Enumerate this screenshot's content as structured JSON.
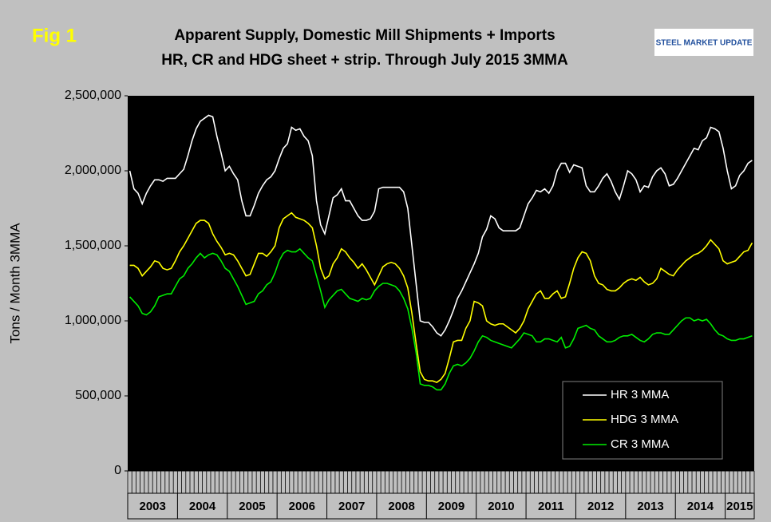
{
  "figure_label": "Fig 1",
  "logo": "STEEL MARKET UPDATE",
  "chart_data": {
    "type": "line",
    "title": "Apparent Supply, Domestic Mill Shipments + Imports",
    "subtitle": "HR, CR and HDG sheet + strip. Through July 2015 3MMA",
    "y_label": "Tons / Month 3MMA",
    "categories": [
      "2003",
      null,
      null,
      null,
      null,
      null,
      null,
      null,
      null,
      null,
      null,
      null,
      "2004",
      null,
      null,
      null,
      null,
      null,
      null,
      null,
      null,
      null,
      null,
      null,
      "2005",
      null,
      null,
      null,
      null,
      null,
      null,
      null,
      null,
      null,
      null,
      null,
      "2006",
      null,
      null,
      null,
      null,
      null,
      null,
      null,
      null,
      null,
      null,
      null,
      "2007",
      null,
      null,
      null,
      null,
      null,
      null,
      null,
      null,
      null,
      null,
      null,
      "2008",
      null,
      null,
      null,
      null,
      null,
      null,
      null,
      null,
      null,
      null,
      null,
      "2009",
      null,
      null,
      null,
      null,
      null,
      null,
      null,
      null,
      null,
      null,
      null,
      "2010",
      null,
      null,
      null,
      null,
      null,
      null,
      null,
      null,
      null,
      null,
      null,
      "2011",
      null,
      null,
      null,
      null,
      null,
      null,
      null,
      null,
      null,
      null,
      null,
      "2012",
      null,
      null,
      null,
      null,
      null,
      null,
      null,
      null,
      null,
      null,
      null,
      "2013",
      null,
      null,
      null,
      null,
      null,
      null,
      null,
      null,
      null,
      null,
      null,
      "2014",
      null,
      null,
      null,
      null,
      null,
      null,
      null,
      null,
      null,
      null,
      null,
      "2015",
      null,
      null,
      null,
      null,
      null,
      null
    ],
    "ylim": [
      0,
      2500000
    ],
    "yticks": [
      0,
      {
        "value": 500000,
        "label": "500,000"
      },
      {
        "value": 1000000,
        "label": "1,000,000"
      },
      {
        "value": 1500000,
        "label": "1,500,000"
      },
      {
        "value": 2000000,
        "label": "2,000,000"
      },
      {
        "value": 2500000,
        "label": "2,500,000"
      }
    ],
    "grid": false,
    "legend": "lower right",
    "series": [
      {
        "name": "HR 3 MMA",
        "color": "#ffffff",
        "values": [
          2000000,
          1880000,
          1850000,
          1780000,
          1850000,
          1900000,
          1940000,
          1940000,
          1930000,
          1950000,
          1950000,
          1950000,
          1980000,
          2010000,
          2100000,
          2200000,
          2280000,
          2330000,
          2350000,
          2370000,
          2360000,
          2230000,
          2120000,
          2000000,
          2030000,
          1980000,
          1940000,
          1800000,
          1700000,
          1700000,
          1770000,
          1850000,
          1900000,
          1940000,
          1960000,
          2000000,
          2080000,
          2150000,
          2180000,
          2290000,
          2270000,
          2280000,
          2230000,
          2200000,
          2100000,
          1800000,
          1640000,
          1580000,
          1700000,
          1820000,
          1840000,
          1880000,
          1800000,
          1800000,
          1750000,
          1700000,
          1670000,
          1670000,
          1680000,
          1730000,
          1880000,
          1890000,
          1890000,
          1890000,
          1890000,
          1890000,
          1860000,
          1750000,
          1500000,
          1250000,
          1000000,
          990000,
          990000,
          960000,
          920000,
          900000,
          940000,
          1000000,
          1070000,
          1150000,
          1200000,
          1260000,
          1320000,
          1380000,
          1450000,
          1560000,
          1610000,
          1700000,
          1680000,
          1620000,
          1600000,
          1600000,
          1600000,
          1600000,
          1620000,
          1700000,
          1780000,
          1820000,
          1870000,
          1860000,
          1880000,
          1850000,
          1900000,
          2000000,
          2050000,
          2050000,
          1990000,
          2040000,
          2030000,
          2020000,
          1900000,
          1860000,
          1860000,
          1900000,
          1950000,
          1980000,
          1930000,
          1860000,
          1810000,
          1900000,
          2000000,
          1980000,
          1940000,
          1860000,
          1900000,
          1890000,
          1960000,
          2000000,
          2020000,
          1980000,
          1900000,
          1910000,
          1950000,
          2000000,
          2050000,
          2100000,
          2150000,
          2140000,
          2200000,
          2220000,
          2290000,
          2280000,
          2260000,
          2150000,
          2000000,
          1880000,
          1900000,
          1970000,
          2000000,
          2050000,
          2070000
        ]
      },
      {
        "name": "HDG 3 MMA",
        "color": "#ffff00",
        "values": [
          1370000,
          1370000,
          1350000,
          1300000,
          1330000,
          1360000,
          1400000,
          1390000,
          1350000,
          1340000,
          1350000,
          1400000,
          1460000,
          1500000,
          1550000,
          1600000,
          1650000,
          1670000,
          1670000,
          1650000,
          1580000,
          1530000,
          1490000,
          1440000,
          1450000,
          1440000,
          1400000,
          1350000,
          1300000,
          1310000,
          1380000,
          1450000,
          1450000,
          1430000,
          1460000,
          1500000,
          1620000,
          1680000,
          1700000,
          1720000,
          1690000,
          1680000,
          1670000,
          1650000,
          1620000,
          1500000,
          1350000,
          1280000,
          1300000,
          1380000,
          1420000,
          1480000,
          1460000,
          1420000,
          1390000,
          1350000,
          1380000,
          1340000,
          1290000,
          1240000,
          1300000,
          1360000,
          1380000,
          1390000,
          1380000,
          1350000,
          1300000,
          1220000,
          1050000,
          850000,
          660000,
          610000,
          600000,
          600000,
          590000,
          610000,
          650000,
          750000,
          860000,
          870000,
          870000,
          950000,
          1000000,
          1130000,
          1120000,
          1100000,
          1000000,
          980000,
          970000,
          980000,
          980000,
          960000,
          940000,
          920000,
          950000,
          1000000,
          1080000,
          1130000,
          1180000,
          1200000,
          1150000,
          1150000,
          1180000,
          1200000,
          1150000,
          1160000,
          1250000,
          1350000,
          1420000,
          1460000,
          1450000,
          1400000,
          1300000,
          1250000,
          1240000,
          1210000,
          1200000,
          1200000,
          1220000,
          1250000,
          1270000,
          1280000,
          1270000,
          1290000,
          1260000,
          1240000,
          1250000,
          1280000,
          1350000,
          1330000,
          1310000,
          1300000,
          1340000,
          1370000,
          1400000,
          1420000,
          1440000,
          1450000,
          1470000,
          1500000,
          1540000,
          1510000,
          1480000,
          1400000,
          1380000,
          1390000,
          1400000,
          1430000,
          1460000,
          1470000,
          1520000
        ]
      },
      {
        "name": "CR 3 MMA",
        "color": "#00ee00",
        "values": [
          1160000,
          1130000,
          1100000,
          1050000,
          1040000,
          1060000,
          1100000,
          1160000,
          1170000,
          1180000,
          1180000,
          1230000,
          1280000,
          1300000,
          1350000,
          1380000,
          1420000,
          1450000,
          1420000,
          1440000,
          1450000,
          1440000,
          1400000,
          1350000,
          1330000,
          1280000,
          1230000,
          1170000,
          1110000,
          1120000,
          1130000,
          1180000,
          1200000,
          1240000,
          1260000,
          1320000,
          1400000,
          1450000,
          1470000,
          1460000,
          1460000,
          1480000,
          1450000,
          1420000,
          1400000,
          1300000,
          1200000,
          1090000,
          1140000,
          1170000,
          1200000,
          1210000,
          1180000,
          1150000,
          1140000,
          1130000,
          1150000,
          1140000,
          1150000,
          1200000,
          1230000,
          1250000,
          1250000,
          1240000,
          1230000,
          1200000,
          1150000,
          1080000,
          950000,
          790000,
          580000,
          570000,
          570000,
          560000,
          540000,
          540000,
          580000,
          650000,
          700000,
          710000,
          700000,
          720000,
          750000,
          800000,
          860000,
          900000,
          890000,
          870000,
          860000,
          850000,
          840000,
          830000,
          820000,
          850000,
          880000,
          920000,
          910000,
          900000,
          860000,
          860000,
          880000,
          880000,
          870000,
          860000,
          890000,
          820000,
          830000,
          880000,
          950000,
          960000,
          970000,
          950000,
          940000,
          900000,
          880000,
          860000,
          860000,
          870000,
          890000,
          900000,
          900000,
          910000,
          890000,
          870000,
          860000,
          880000,
          910000,
          920000,
          920000,
          910000,
          910000,
          940000,
          970000,
          1000000,
          1020000,
          1020000,
          1000000,
          1010000,
          1000000,
          1010000,
          980000,
          940000,
          910000,
          900000,
          880000,
          870000,
          870000,
          880000,
          880000,
          890000,
          900000
        ]
      }
    ]
  }
}
